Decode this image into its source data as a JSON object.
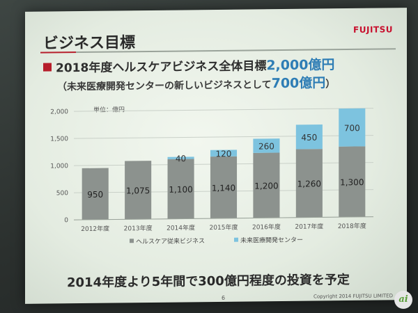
{
  "slide": {
    "title": "ビジネス目標",
    "logo": "FUJITSU",
    "heading1_prefix": "2018年度ヘルスケアビジネス全体目標",
    "heading1_value": "2,000億円",
    "heading2_prefix": "（未来医療開発センターの新しいビジネスとして",
    "heading2_value": "700億円",
    "heading2_suffix": "）",
    "unit_label": "単位：億円",
    "bottom_text": "2014年度より5年間で300億円程度の投資を予定",
    "page_number": "6",
    "copyright": "Copyright 2014 FUJITSU LIMITED",
    "watermark": "ai"
  },
  "colors": {
    "accent_red": "#b61e2b",
    "series1": "#8c928e",
    "series2": "#7dc3df",
    "highlight_blue": "#2e7db5"
  },
  "chart_data": {
    "type": "bar",
    "stacked": true,
    "categories": [
      "2012年度",
      "2013年度",
      "2014年度",
      "2015年度",
      "2016年度",
      "2017年度",
      "2018年度"
    ],
    "series": [
      {
        "name": "ヘルスケア従来ビジネス",
        "values": [
          950,
          1075,
          1100,
          1140,
          1200,
          1260,
          1300
        ],
        "color": "#8c928e"
      },
      {
        "name": "未来医療開発センター",
        "values": [
          null,
          null,
          40,
          120,
          260,
          450,
          700
        ],
        "color": "#7dc3df"
      }
    ],
    "labels1": [
      "950",
      "1,075",
      "1,100",
      "1,140",
      "1,200",
      "1,260",
      "1,300"
    ],
    "labels2": [
      "",
      "",
      "40",
      "120",
      "260",
      "450",
      "700"
    ],
    "yticks": [
      "0",
      "500",
      "1,000",
      "1,500",
      "2,000"
    ],
    "ytick_values": [
      0,
      500,
      1000,
      1500,
      2000
    ],
    "ylim": [
      0,
      2000
    ],
    "grid": true,
    "legend_position": "bottom"
  }
}
